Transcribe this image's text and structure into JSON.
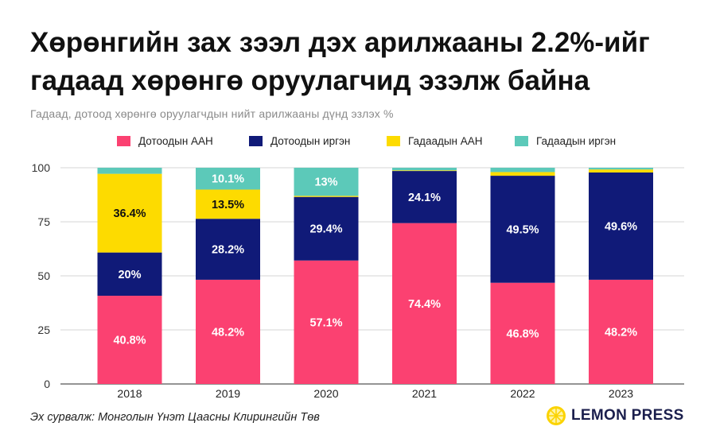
{
  "title_line1": "Хөрөнгийн зах зээл дэх арилжааны 2.2%-ийг",
  "title_line2": "гадаад хөрөнгө оруулагчид эзэлж байна",
  "subtitle": "Гадаад, дотоод хөрөнгө оруулагчдын нийт арилжааны дүнд эзлэх %",
  "source": "Эх сурвалж: Монголын Үнэт Цаасны Клирингийн Төв",
  "logo": {
    "text": "LEMON PRESS",
    "icon": "lemon-icon"
  },
  "colors": {
    "domestic_company": "#fb4171",
    "domestic_individual": "#101a78",
    "foreign_company": "#fddb00",
    "foreign_individual": "#5cc9b9",
    "label_dark": "#111111",
    "label_light": "#ffffff"
  },
  "chart_data": {
    "type": "bar",
    "stacked": true,
    "title": "Хөрөнгийн зах зээл дэх арилжааны 2.2%-ийг гадаад хөрөнгө оруулагчид эзэлж байна",
    "subtitle": "Гадаад, дотоод хөрөнгө оруулагчдын нийт арилжааны дүнд эзлэх %",
    "categories": [
      "2018",
      "2019",
      "2020",
      "2021",
      "2022",
      "2023"
    ],
    "ylim": [
      0,
      100
    ],
    "yticks": [
      0,
      25,
      50,
      75,
      100
    ],
    "grid": true,
    "legend_position": "top",
    "series": [
      {
        "name": "Дотоодын ААН",
        "color": "#fb4171",
        "values": [
          40.8,
          48.2,
          57.1,
          74.4,
          46.8,
          48.2
        ],
        "labels": [
          "40.8%",
          "48.2%",
          "57.1%",
          "74.4%",
          "46.8%",
          "48.2%"
        ]
      },
      {
        "name": "Дотоодын иргэн",
        "color": "#101a78",
        "values": [
          20.0,
          28.2,
          29.4,
          24.1,
          49.5,
          49.6
        ],
        "labels": [
          "20%",
          "28.2%",
          "29.4%",
          "24.1%",
          "49.5%",
          "49.6%"
        ]
      },
      {
        "name": "Гадаадын ААН",
        "color": "#fddb00",
        "values": [
          36.4,
          13.5,
          0.5,
          0.3,
          1.7,
          1.4
        ],
        "labels": [
          "36.4%",
          "13.5%",
          "",
          "",
          "",
          ""
        ]
      },
      {
        "name": "Гадаадын иргэн",
        "color": "#5cc9b9",
        "values": [
          2.8,
          10.1,
          13.0,
          1.2,
          2.0,
          0.8
        ],
        "labels": [
          "",
          "10.1%",
          "13%",
          "",
          "",
          ""
        ]
      }
    ]
  }
}
